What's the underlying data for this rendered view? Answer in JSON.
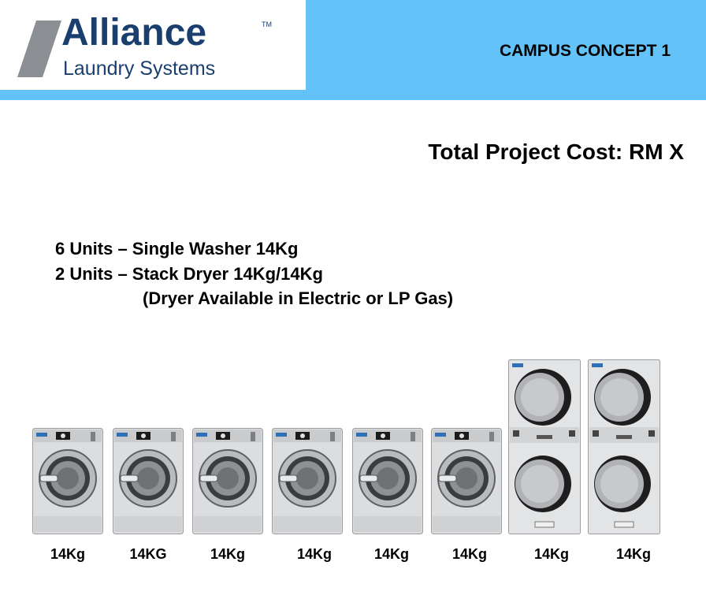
{
  "header": {
    "brand": "Alliance",
    "tm": "TM",
    "subtitle": "Laundry Systems",
    "concept": "CAMPUS CONCEPT 1"
  },
  "cost": "Total Project Cost: RM X",
  "specs": [
    "6 Units – Single Washer 14Kg",
    "2 Units – Stack Dryer 14Kg/14Kg",
    "(Dryer Available in Electric or LP Gas)"
  ],
  "machines": [
    {
      "type": "washer",
      "label": "14Kg"
    },
    {
      "type": "washer",
      "label": "14KG"
    },
    {
      "type": "washer",
      "label": "14Kg"
    },
    {
      "type": "washer",
      "label": "14Kg"
    },
    {
      "type": "washer",
      "label": "14Kg"
    },
    {
      "type": "washer",
      "label": "14Kg"
    },
    {
      "type": "stack-dryer",
      "label": "14Kg"
    },
    {
      "type": "stack-dryer",
      "label": "14Kg"
    }
  ],
  "colors": {
    "header_band": "#63c2f7",
    "brand_navy": "#1a3e6e",
    "machine_body": "#d9dadb",
    "dryer_door": "#1e1e1e"
  }
}
